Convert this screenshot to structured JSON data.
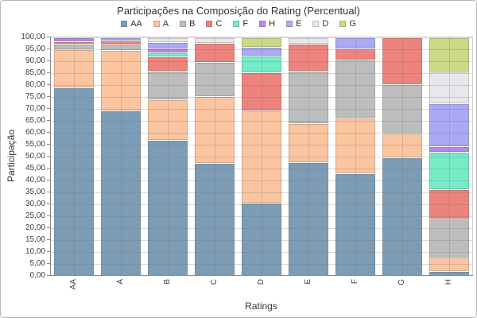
{
  "title": "Participações na Composição do Rating (Percentual)",
  "chart_data": {
    "type": "bar",
    "stacked": true,
    "title": "Participações na Composição do Rating (Percentual)",
    "xlabel": "Ratings",
    "ylabel": "Participação",
    "ylim": [
      0,
      100
    ],
    "ytick_step": 5,
    "ytick_labels": [
      "0,00",
      "5,00",
      "10,00",
      "15,00",
      "20,00",
      "25,00",
      "30,00",
      "35,00",
      "40,00",
      "45,00",
      "50,00",
      "55,00",
      "60,00",
      "65,00",
      "70,00",
      "75,00",
      "80,00",
      "85,00",
      "90,00",
      "95,00",
      "100,00"
    ],
    "grid": true,
    "legend_position": "top",
    "stack_order": "bottom-to-top",
    "categories": [
      "AA",
      "A",
      "B",
      "C",
      "D",
      "E",
      "F",
      "G",
      "H"
    ],
    "series": [
      {
        "name": "AA",
        "color": "#7d9cb5",
        "values": [
          79.0,
          69.5,
          57.0,
          47.2,
          30.6,
          47.8,
          43.0,
          49.8,
          2.0
        ]
      },
      {
        "name": "A",
        "color": "#fbc5a0",
        "values": [
          16.0,
          25.3,
          17.0,
          28.0,
          38.8,
          16.2,
          23.4,
          10.0,
          5.6
        ]
      },
      {
        "name": "B",
        "color": "#bdbdbd",
        "values": [
          2.2,
          2.2,
          12.0,
          14.6,
          0,
          22.1,
          24.3,
          20.6,
          16.4
        ]
      },
      {
        "name": "C",
        "color": "#ec837c",
        "values": [
          1.2,
          1.7,
          6.0,
          7.8,
          15.9,
          11.1,
          4.5,
          19.6,
          12.5
        ]
      },
      {
        "name": "F",
        "color": "#74ecc6",
        "values": [
          0,
          0,
          1.8,
          0,
          7.2,
          0,
          0,
          0,
          15.5
        ]
      },
      {
        "name": "H",
        "color": "#b388ea",
        "values": [
          1.6,
          0,
          1.8,
          0,
          0,
          0,
          0,
          0,
          2.5
        ]
      },
      {
        "name": "E",
        "color": "#a9aaf2",
        "values": [
          0,
          1.3,
          2.4,
          0,
          3.4,
          0,
          4.8,
          0,
          17.7
        ]
      },
      {
        "name": "D",
        "color": "#e9e7eb",
        "values": [
          0,
          0,
          2.0,
          2.4,
          0,
          2.8,
          0,
          0,
          13.5
        ]
      },
      {
        "name": "G",
        "color": "#cdd985",
        "values": [
          0,
          0,
          0,
          0,
          4.1,
          0,
          0,
          0,
          14.3
        ]
      }
    ]
  }
}
